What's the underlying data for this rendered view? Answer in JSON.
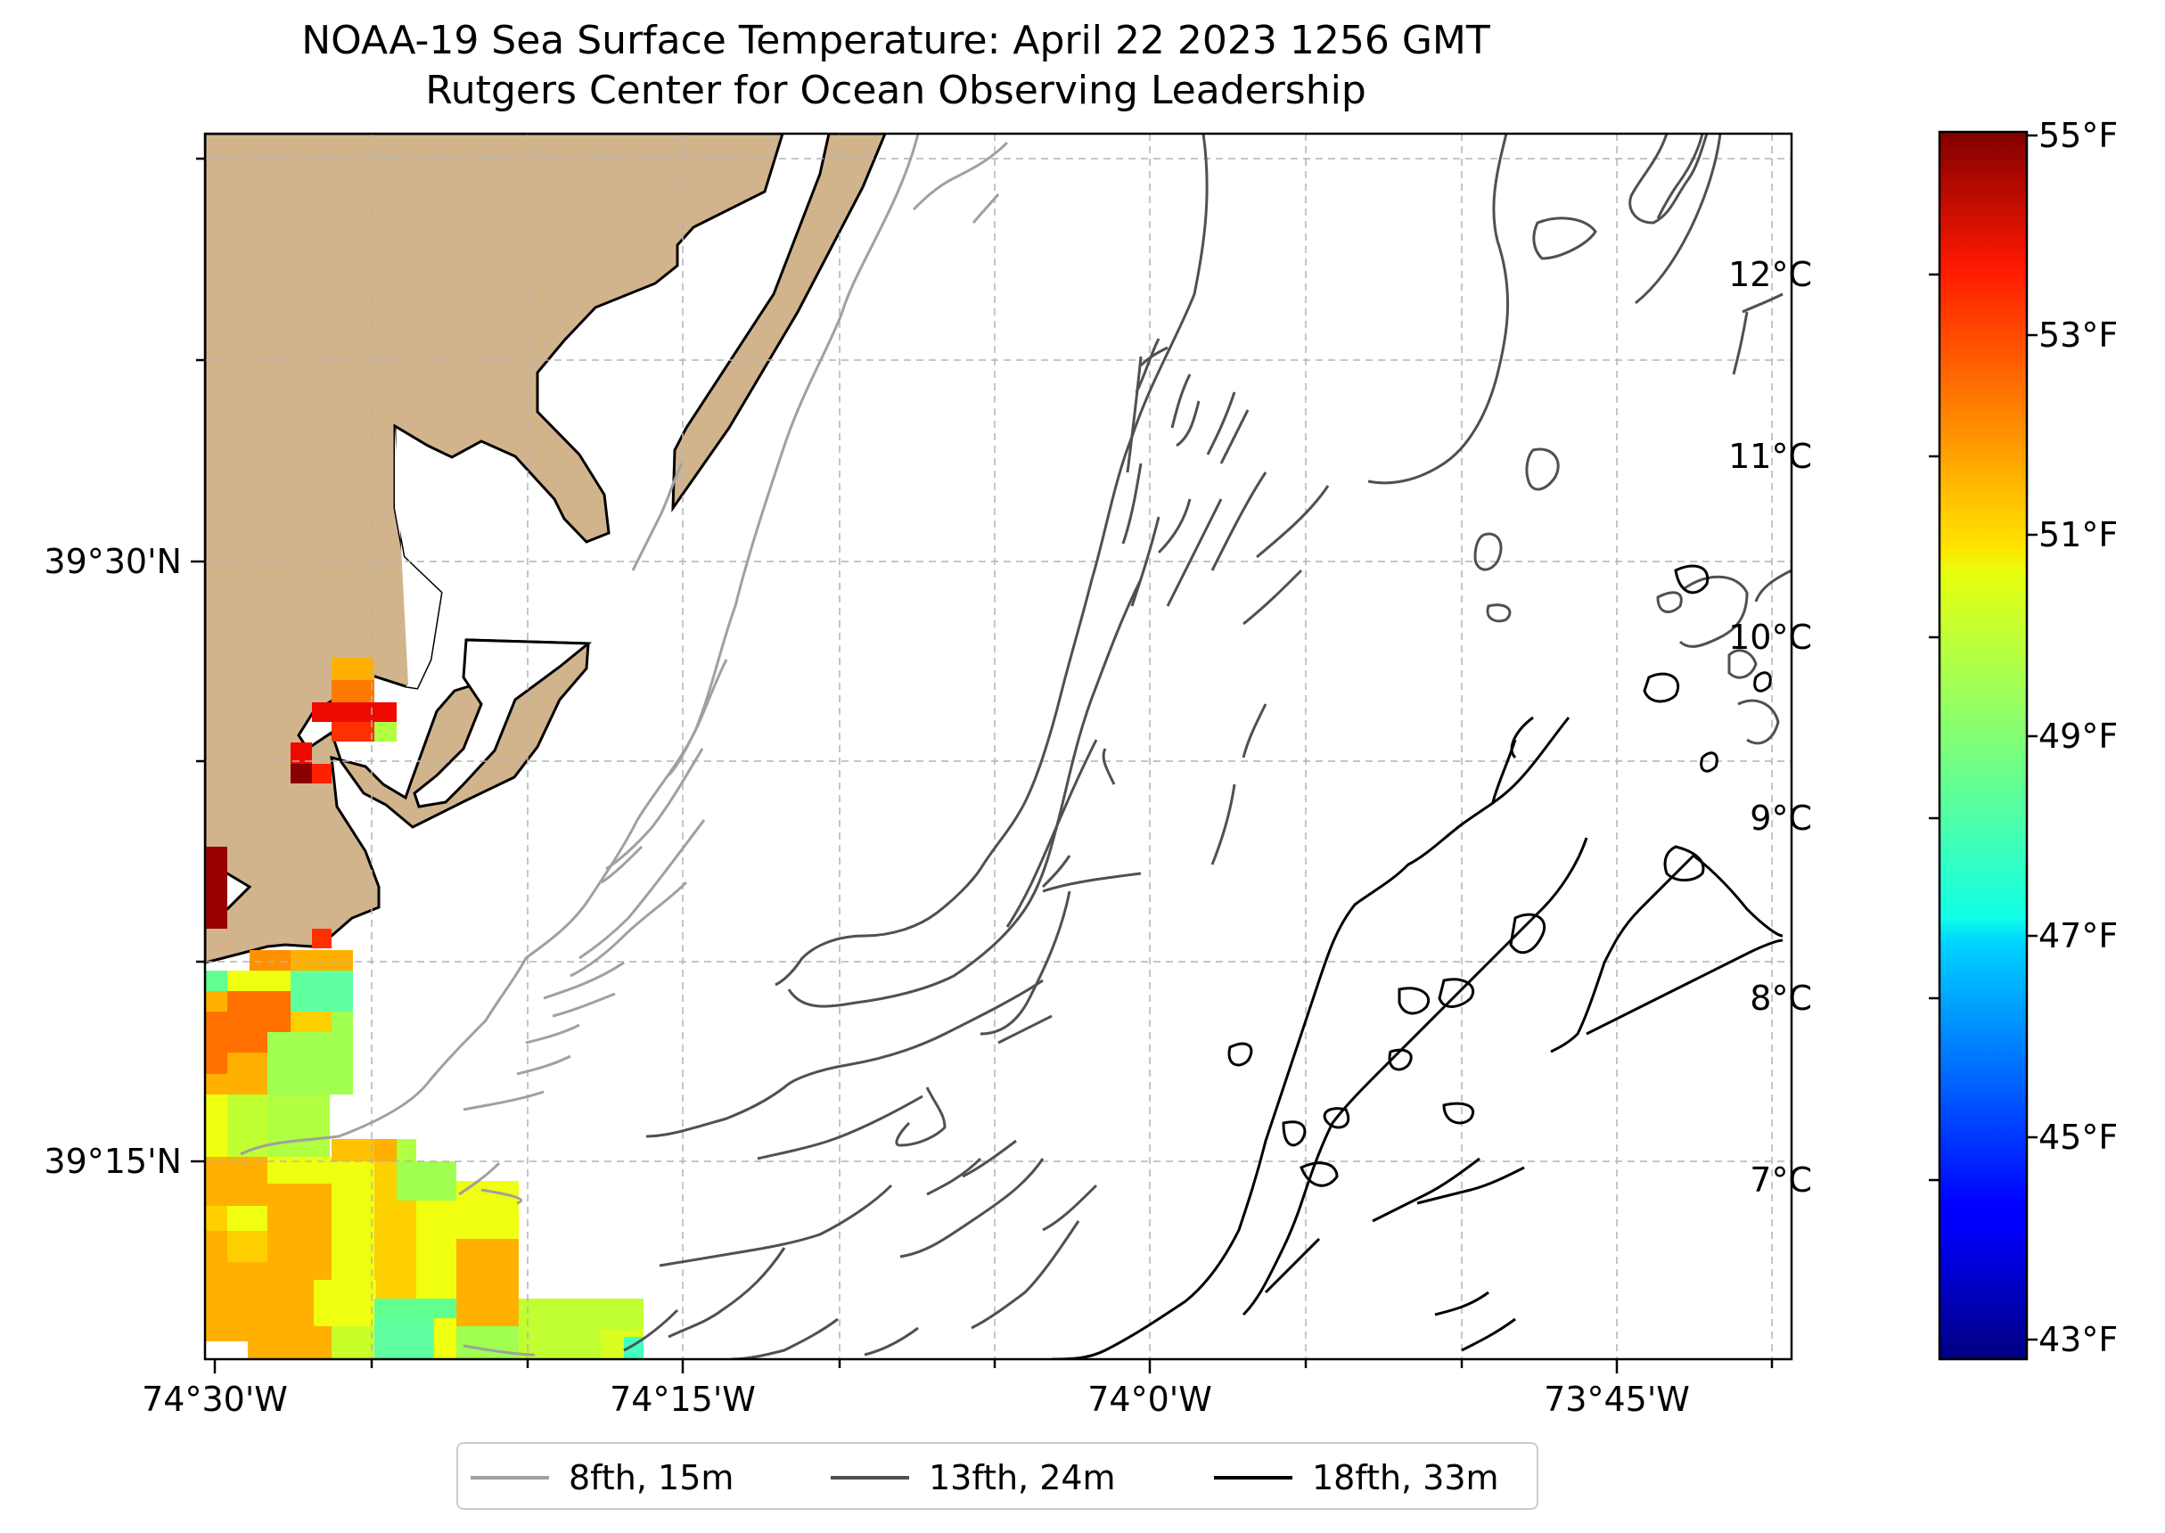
{
  "title": "NOAA-19 Sea Surface Temperature: April 22 2023 1256 GMT",
  "subtitle": "Rutgers Center for Ocean Observing Leadership",
  "lat_ticks": [
    {
      "label": "39°30'N",
      "lat": 39.5
    },
    {
      "label": "39°15'N",
      "lat": 39.25
    }
  ],
  "lon_ticks": [
    {
      "label": "74°30'W",
      "lon": -74.5
    },
    {
      "label": "74°15'W",
      "lon": -74.25
    },
    {
      "label": "74°0'W",
      "lon": -74.0
    },
    {
      "label": "73°45'W",
      "lon": -73.75
    }
  ],
  "colorbar": {
    "colormap": "jet",
    "range_f": [
      42.8,
      55.2
    ],
    "fahrenheit_ticks": [
      "55°F",
      "53°F",
      "51°F",
      "49°F",
      "47°F",
      "45°F",
      "43°F"
    ],
    "fahrenheit_values": [
      55,
      53,
      51,
      49,
      47,
      45,
      43
    ],
    "celsius_ticks": [
      "12°C",
      "11°C",
      "10°C",
      "9°C",
      "8°C",
      "7°C"
    ],
    "celsius_values": [
      12,
      11,
      10,
      9,
      8,
      7
    ]
  },
  "legend": {
    "items": [
      {
        "label": "8fth, 15m",
        "color": "#a0a0a0"
      },
      {
        "label": "13fth, 24m",
        "color": "#505050"
      },
      {
        "label": "18fth, 33m",
        "color": "#000000"
      }
    ]
  },
  "colors": {
    "land": "#d2b48c",
    "coastline": "#000000",
    "gridline": "#b0b0b0"
  }
}
